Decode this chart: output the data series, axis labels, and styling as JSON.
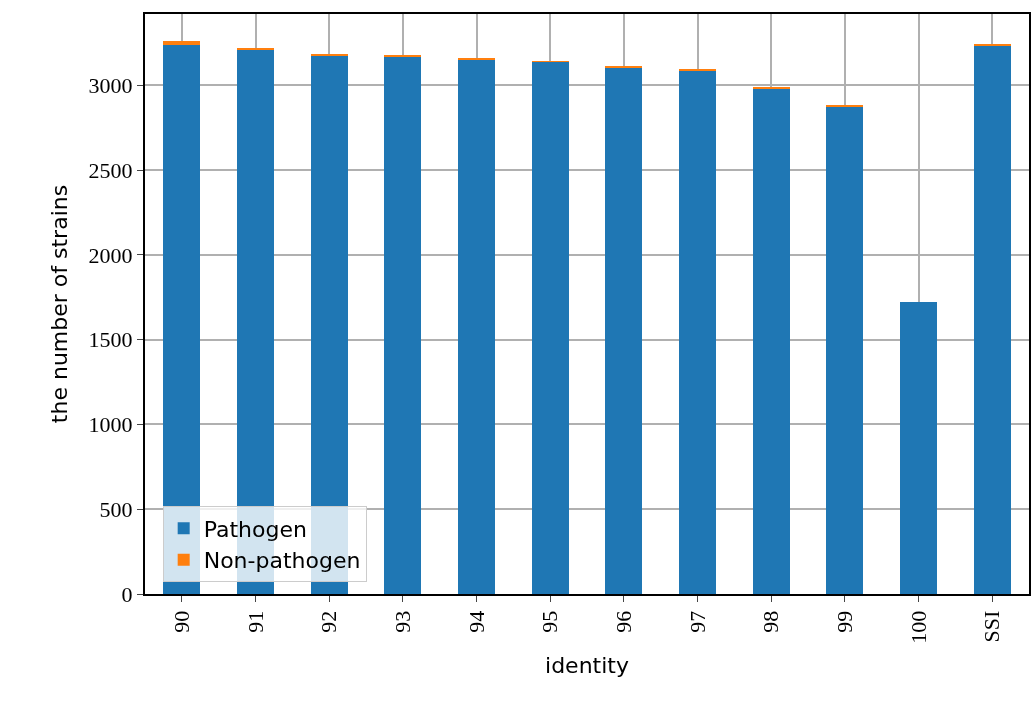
{
  "chart_data": {
    "type": "bar",
    "stacked": true,
    "xlabel": "identity",
    "ylabel": "the number of strains",
    "categories": [
      "90",
      "91",
      "92",
      "93",
      "94",
      "95",
      "96",
      "97",
      "98",
      "99",
      "100",
      "SSI"
    ],
    "series": [
      {
        "name": "Pathogen",
        "color": "#1f77b4",
        "values": [
          3238,
          3205,
          3173,
          3167,
          3153,
          3137,
          3106,
          3088,
          2982,
          2877,
          1721,
          3236
        ]
      },
      {
        "name": "Non-pathogen",
        "color": "#ff7f0e",
        "values": [
          20,
          13,
          10,
          8,
          4,
          4,
          5,
          4,
          3,
          3,
          0,
          6
        ]
      }
    ],
    "ylim": [
      0,
      3420
    ],
    "yticks": [
      0,
      500,
      1000,
      1500,
      2000,
      2500,
      3000
    ],
    "grid": true,
    "legend": "bottom left"
  }
}
